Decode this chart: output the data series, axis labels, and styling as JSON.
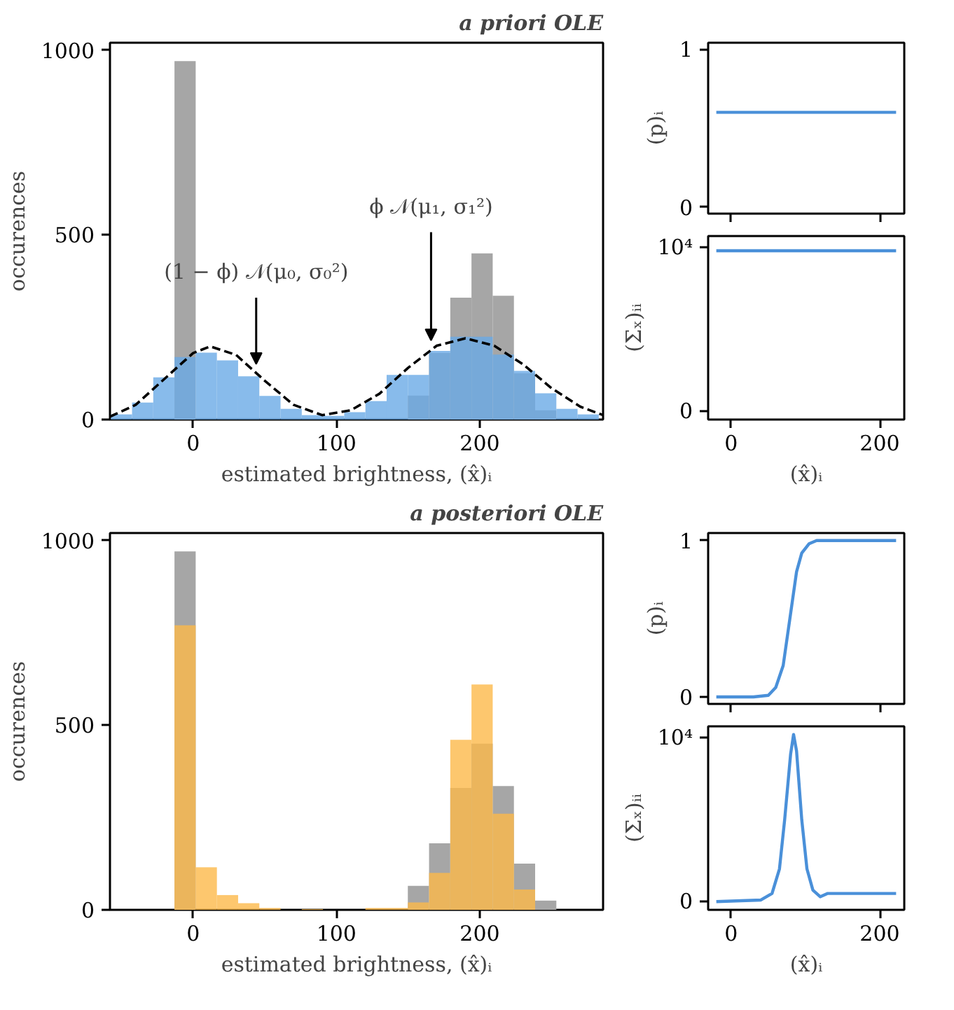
{
  "chart_data": [
    {
      "type": "histogram",
      "title": "a priori OLE",
      "xlabel": "estimated brightness, (x̂)ᵢ",
      "ylabel": "occurences",
      "xlim": [
        -58,
        286
      ],
      "ylim": [
        0,
        1020
      ],
      "xticks": [
        0,
        100,
        200
      ],
      "yticks": [
        0,
        500,
        1000
      ],
      "grid": false,
      "bins": [
        -13,
        1.8,
        16.6,
        31.4,
        46.2,
        61,
        75.8,
        90.6,
        105.4,
        120.2,
        135,
        149.8,
        164.6,
        179.4,
        194.2,
        209,
        223.8,
        238.6,
        253.4
      ],
      "series": [
        {
          "color": "#a6a6a6",
          "values": [
            970,
            0,
            0,
            0,
            0,
            0,
            0,
            0,
            0,
            0,
            0,
            65,
            180,
            330,
            450,
            335,
            125,
            25
          ]
        },
        {
          "color": "#6aaae6",
          "bins": [
            -57.4,
            -42.6,
            -27.8,
            -13,
            1.8,
            16.6,
            31.4,
            46.2,
            61,
            75.8,
            90.6,
            105.4,
            120.2,
            135,
            149.8,
            164.6,
            179.4,
            194.2,
            209,
            223.8,
            238.6,
            253.4,
            268.2,
            283
          ],
          "values": [
            14,
            46,
            114,
            169,
            181,
            160,
            117,
            64,
            29,
            12,
            10,
            20,
            50,
            121,
            121,
            186,
            224,
            224,
            176,
            132,
            71,
            29,
            14
          ]
        },
        {
          "type": "line",
          "color": "#000000",
          "line_style": "dashed",
          "x": [
            -58,
            -40,
            -20,
            0,
            12,
            30,
            50,
            70,
            90,
            110,
            130,
            150,
            170,
            190,
            210,
            230,
            250,
            270,
            286
          ],
          "values": [
            8,
            40,
            110,
            180,
            198,
            175,
            105,
            40,
            12,
            25,
            70,
            140,
            200,
            220,
            200,
            150,
            85,
            35,
            12
          ]
        }
      ],
      "annotations": [
        {
          "text": "(1 − ϕ) 𝒩(μ₀, σ₀²)",
          "x": 44,
          "y": 150
        },
        {
          "text": "ϕ 𝒩(μ₁, σ₁²)",
          "x": 166,
          "y": 214
        }
      ]
    },
    {
      "type": "line",
      "ylabel": "(p)ᵢ",
      "xlim": [
        -31,
        233
      ],
      "ylim": [
        -0.04,
        1.04
      ],
      "xticks": [
        0,
        200
      ],
      "yticks": [
        0,
        1
      ],
      "tick_labels": "y",
      "grid": false,
      "series": [
        {
          "color": "#4a90d9",
          "x": [
            -20,
            222
          ],
          "values": [
            0.6,
            0.6
          ]
        }
      ]
    },
    {
      "type": "line",
      "xlabel": "(x̂)ᵢ",
      "ylabel": "(Σₓ)ᵢᵢ",
      "xlim": [
        -31,
        233
      ],
      "ylim": [
        -500,
        10700
      ],
      "xticks": [
        0,
        200
      ],
      "yticks": [
        0,
        {
          "value": 10000,
          "label": "10⁴"
        }
      ],
      "grid": false,
      "series": [
        {
          "color": "#4a90d9",
          "x": [
            -20,
            222
          ],
          "values": [
            9800,
            9800
          ]
        }
      ]
    },
    {
      "type": "histogram",
      "title": "a posteriori OLE",
      "xlabel": "estimated brightness, (x̂)ᵢ",
      "ylabel": "occurences",
      "xlim": [
        -58,
        286
      ],
      "ylim": [
        0,
        1020
      ],
      "xticks": [
        0,
        100,
        200
      ],
      "yticks": [
        0,
        500,
        1000
      ],
      "grid": false,
      "bins": [
        -13,
        1.8,
        16.6,
        31.4,
        46.2,
        61,
        75.8,
        90.6,
        105.4,
        120.2,
        135,
        149.8,
        164.6,
        179.4,
        194.2,
        209,
        223.8,
        238.6,
        253.4
      ],
      "series": [
        {
          "color": "#a6a6a6",
          "values": [
            970,
            0,
            0,
            0,
            0,
            0,
            0,
            0,
            0,
            0,
            0,
            65,
            180,
            330,
            450,
            335,
            125,
            25
          ]
        },
        {
          "color": "#fdb94a",
          "values": [
            770,
            115,
            40,
            18,
            5,
            0,
            2,
            0,
            0,
            5,
            5,
            20,
            100,
            460,
            610,
            260,
            55,
            0
          ]
        }
      ]
    },
    {
      "type": "line",
      "ylabel": "(p)ᵢ",
      "xlim": [
        -31,
        233
      ],
      "ylim": [
        -0.045,
        1.048
      ],
      "xticks": [
        0,
        200
      ],
      "yticks": [
        0,
        1
      ],
      "tick_labels": "y",
      "grid": false,
      "series": [
        {
          "color": "#4a90d9",
          "x": [
            -20,
            30,
            50,
            60,
            70,
            79,
            88,
            95,
            105,
            115,
            222
          ],
          "values": [
            0,
            0,
            0.01,
            0.06,
            0.2,
            0.5,
            0.8,
            0.92,
            0.98,
            1,
            1
          ]
        }
      ]
    },
    {
      "type": "line",
      "xlabel": "(x̂)ᵢ",
      "ylabel": "(Σₓ)ᵢᵢ",
      "xlim": [
        -31,
        233
      ],
      "ylim": [
        -500,
        10700
      ],
      "xticks": [
        0,
        200
      ],
      "yticks": [
        0,
        {
          "value": 10000,
          "label": "10⁴"
        }
      ],
      "grid": false,
      "series": [
        {
          "color": "#4a90d9",
          "x": [
            -20,
            40,
            55,
            65,
            72,
            80,
            84,
            88,
            95,
            102,
            110,
            120,
            130,
            222
          ],
          "values": [
            0,
            100,
            500,
            2000,
            5000,
            9000,
            10200,
            9200,
            5000,
            2000,
            700,
            300,
            500,
            500
          ]
        }
      ]
    }
  ]
}
